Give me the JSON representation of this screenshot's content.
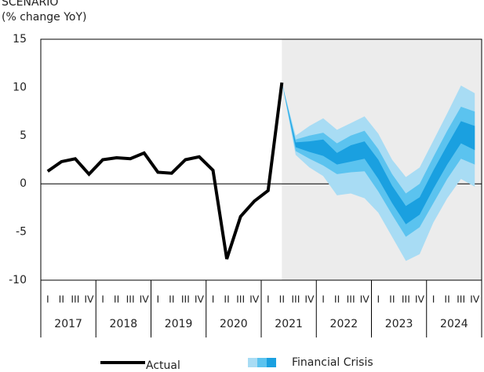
{
  "chart_data": {
    "type": "fan-line",
    "title": "SCENARIO",
    "subtitle": "(% change YoY)",
    "categories": [
      "I",
      "II",
      "III",
      "IV",
      "I",
      "II",
      "III",
      "IV",
      "I",
      "II",
      "III",
      "IV",
      "I",
      "II",
      "III",
      "IV",
      "I",
      "II",
      "III",
      "IV",
      "I",
      "II",
      "III",
      "IV",
      "I",
      "II",
      "III",
      "IV",
      "I",
      "II",
      "III",
      "IV"
    ],
    "year_groups": [
      "2017",
      "2018",
      "2019",
      "2020",
      "2021",
      "2022",
      "2023",
      "2024"
    ],
    "ylim": [
      -10,
      15
    ],
    "yticks": [
      15,
      10,
      5,
      0,
      -5,
      -10
    ],
    "series": [
      {
        "name": "Actual",
        "color": "#000000",
        "values": [
          1.3,
          2.3,
          2.6,
          1.0,
          2.5,
          2.7,
          2.6,
          3.2,
          1.2,
          1.1,
          2.5,
          2.8,
          1.4,
          -7.8,
          -3.4,
          -1.8,
          -0.7,
          10.5,
          null,
          null,
          null,
          null,
          null,
          null,
          null,
          null,
          null,
          null,
          null,
          null,
          null,
          null
        ]
      }
    ],
    "fan": {
      "name": "Financial Crisis",
      "bands": [
        {
          "color": "#a8dcf4",
          "upper": [
            null,
            null,
            null,
            null,
            null,
            null,
            null,
            null,
            null,
            null,
            null,
            null,
            null,
            null,
            null,
            null,
            null,
            10.5,
            5.0,
            6.0,
            6.8,
            5.6,
            6.3,
            7.0,
            5.2,
            2.5,
            0.7,
            1.7,
            4.5,
            7.3,
            10.2,
            9.4
          ],
          "lower": [
            null,
            null,
            null,
            null,
            null,
            null,
            null,
            null,
            null,
            null,
            null,
            null,
            null,
            null,
            null,
            null,
            null,
            10.5,
            3.0,
            1.7,
            0.8,
            -1.2,
            -1.0,
            -1.5,
            -3.0,
            -5.5,
            -8.0,
            -7.3,
            -4.0,
            -1.5,
            0.5,
            -0.3
          ]
        },
        {
          "color": "#5bc3ef",
          "upper": [
            null,
            null,
            null,
            null,
            null,
            null,
            null,
            null,
            null,
            null,
            null,
            null,
            null,
            null,
            null,
            null,
            null,
            10.5,
            4.6,
            5.0,
            5.3,
            4.2,
            5.0,
            5.5,
            3.6,
            1.0,
            -1.0,
            0.0,
            2.8,
            5.5,
            8.0,
            7.5
          ],
          "lower": [
            null,
            null,
            null,
            null,
            null,
            null,
            null,
            null,
            null,
            null,
            null,
            null,
            null,
            null,
            null,
            null,
            null,
            10.5,
            3.4,
            2.6,
            1.9,
            1.0,
            1.2,
            1.3,
            -0.8,
            -3.2,
            -5.5,
            -4.5,
            -2.0,
            0.5,
            2.6,
            2.0
          ]
        },
        {
          "color": "#1aa0e0",
          "upper": [
            null,
            null,
            null,
            null,
            null,
            null,
            null,
            null,
            null,
            null,
            null,
            null,
            null,
            null,
            null,
            null,
            null,
            10.5,
            4.3,
            4.4,
            4.6,
            3.2,
            4.0,
            4.4,
            2.5,
            -0.2,
            -2.3,
            -1.4,
            1.4,
            4.0,
            6.5,
            6.0
          ],
          "lower": [
            null,
            null,
            null,
            null,
            null,
            null,
            null,
            null,
            null,
            null,
            null,
            null,
            null,
            null,
            null,
            null,
            null,
            10.5,
            3.8,
            3.3,
            2.9,
            2.0,
            2.3,
            2.6,
            0.5,
            -2.0,
            -4.2,
            -3.2,
            -0.5,
            2.0,
            4.2,
            3.5
          ]
        }
      ]
    }
  }
}
